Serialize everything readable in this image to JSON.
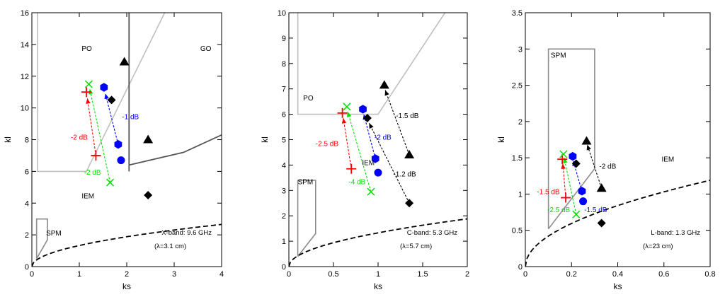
{
  "colors": {
    "red": "#ff0000",
    "green": "#00e000",
    "blue": "#0000ff",
    "black": "#000000",
    "boundary_light": "#bfbfbf",
    "boundary_gray": "#8c8c8c",
    "boundary_dark": "#555555"
  },
  "chart_data": [
    {
      "type": "scatter",
      "band_label": "X-band: 9.6 GHz",
      "wavelength_label": "(λ=3.1 cm)",
      "xlabel": "ks",
      "ylabel": "kl",
      "xlim": [
        0,
        4
      ],
      "ylim": [
        0,
        16
      ],
      "xticks": [
        0,
        1,
        2,
        3,
        4
      ],
      "xtick_labels": [
        "0",
        "1",
        "2",
        "3",
        "4"
      ],
      "yticks": [
        0,
        2,
        4,
        6,
        8,
        10,
        12,
        14,
        16
      ],
      "ytick_labels": [
        "0",
        "2",
        "4",
        "6",
        "8",
        "10",
        "12",
        "14",
        "16"
      ],
      "regions": [
        {
          "label": "PO",
          "x": 1.05,
          "y": 13.6
        },
        {
          "label": "GO",
          "x": 3.55,
          "y": 13.6
        },
        {
          "label": "IEM",
          "x": 1.05,
          "y": 4.3
        },
        {
          "label": "SPM",
          "x": 0.3,
          "y": 1.95
        }
      ],
      "boundaries": [
        {
          "style": "light",
          "points": [
            [
              0.12,
              16
            ],
            [
              0.12,
              6
            ],
            [
              1.15,
              6
            ],
            [
              2.8,
              16
            ]
          ]
        },
        {
          "style": "dark",
          "points": [
            [
              2.05,
              16
            ],
            [
              2.05,
              6
            ]
          ]
        },
        {
          "style": "dark",
          "points": [
            [
              2.05,
              6.4
            ],
            [
              3.2,
              7.2
            ],
            [
              4,
              8.3
            ]
          ]
        },
        {
          "style": "gray",
          "points": [
            [
              0.1,
              0.5
            ],
            [
              0.1,
              3
            ],
            [
              0.33,
              3
            ],
            [
              0.33,
              1.7
            ],
            [
              0.1,
              0.5
            ]
          ]
        }
      ],
      "curve": {
        "type": "sqrt",
        "coef": 1.33
      },
      "points": [
        {
          "series": "red",
          "marker": "plus",
          "x": 1.15,
          "y": 11.0
        },
        {
          "series": "red",
          "marker": "plus",
          "x": 1.35,
          "y": 7.0
        },
        {
          "series": "green",
          "marker": "x",
          "x": 1.2,
          "y": 11.5
        },
        {
          "series": "green",
          "marker": "x",
          "x": 1.65,
          "y": 5.3
        },
        {
          "series": "blue",
          "marker": "hexagon",
          "x": 1.52,
          "y": 11.3
        },
        {
          "series": "blue",
          "marker": "hexagon",
          "x": 1.82,
          "y": 7.7
        },
        {
          "series": "blue",
          "marker": "circle",
          "x": 1.88,
          "y": 6.7
        },
        {
          "series": "black",
          "marker": "triangle",
          "x": 1.95,
          "y": 12.9
        },
        {
          "series": "black",
          "marker": "diamond",
          "x": 1.68,
          "y": 10.5
        },
        {
          "series": "black",
          "marker": "triangle",
          "x": 2.45,
          "y": 8.0
        },
        {
          "series": "black",
          "marker": "diamond",
          "x": 2.45,
          "y": 4.5
        }
      ],
      "arrows": [
        {
          "series": "red",
          "from": [
            1.35,
            7.0
          ],
          "to": [
            1.17,
            10.6
          ]
        },
        {
          "series": "green",
          "from": [
            1.65,
            5.3
          ],
          "to": [
            1.22,
            11.2
          ]
        },
        {
          "series": "blue",
          "from": [
            1.82,
            7.7
          ],
          "to": [
            1.55,
            10.9
          ]
        }
      ],
      "annotations": [
        {
          "text": "-2 dB",
          "series": "red",
          "x": 0.82,
          "y": 8.0
        },
        {
          "text": "-2 dB",
          "series": "green",
          "x": 1.1,
          "y": 5.8
        },
        {
          "text": "-1 dB",
          "series": "blue",
          "x": 1.9,
          "y": 9.3
        }
      ]
    },
    {
      "type": "scatter",
      "band_label": "C-band: 5.3 GHz",
      "wavelength_label": "(λ=5.7 cm)",
      "xlabel": "ks",
      "ylabel": "kl",
      "xlim": [
        0,
        2
      ],
      "ylim": [
        0,
        10
      ],
      "xticks": [
        0,
        0.5,
        1,
        1.5,
        2
      ],
      "xtick_labels": [
        "0",
        "0.5",
        "1",
        "1.5",
        "2"
      ],
      "yticks": [
        0,
        1,
        2,
        3,
        4,
        5,
        6,
        7,
        8,
        9,
        10
      ],
      "ytick_labels": [
        "0",
        "1",
        "2",
        "3",
        "4",
        "5",
        "6",
        "7",
        "8",
        "9",
        "10"
      ],
      "regions": [
        {
          "label": "PO",
          "x": 0.16,
          "y": 6.55
        },
        {
          "label": "IEM",
          "x": 0.82,
          "y": 4.0
        },
        {
          "label": "SPM",
          "x": 0.1,
          "y": 3.25
        }
      ],
      "boundaries": [
        {
          "style": "light",
          "points": [
            [
              0.1,
              10
            ],
            [
              0.1,
              6
            ],
            [
              1.0,
              6
            ],
            [
              1.75,
              10
            ]
          ]
        },
        {
          "style": "gray",
          "points": [
            [
              0.1,
              0.4
            ],
            [
              0.1,
              3.4
            ],
            [
              0.3,
              3.4
            ],
            [
              0.3,
              1.3
            ],
            [
              0.1,
              0.4
            ]
          ]
        }
      ],
      "curve": {
        "type": "sqrt",
        "coef": 1.33
      },
      "points": [
        {
          "series": "red",
          "marker": "plus",
          "x": 0.6,
          "y": 6.05
        },
        {
          "series": "red",
          "marker": "plus",
          "x": 0.7,
          "y": 3.85
        },
        {
          "series": "green",
          "marker": "x",
          "x": 0.65,
          "y": 6.3
        },
        {
          "series": "green",
          "marker": "x",
          "x": 0.92,
          "y": 2.95
        },
        {
          "series": "blue",
          "marker": "hexagon",
          "x": 0.83,
          "y": 6.2
        },
        {
          "series": "blue",
          "marker": "hexagon",
          "x": 0.97,
          "y": 4.25
        },
        {
          "series": "blue",
          "marker": "circle",
          "x": 1.0,
          "y": 3.7
        },
        {
          "series": "black",
          "marker": "diamond",
          "x": 0.88,
          "y": 5.85
        },
        {
          "series": "black",
          "marker": "triangle",
          "x": 1.07,
          "y": 7.15
        },
        {
          "series": "black",
          "marker": "triangle",
          "x": 1.35,
          "y": 4.4
        },
        {
          "series": "black",
          "marker": "diamond",
          "x": 1.35,
          "y": 2.5
        }
      ],
      "arrows": [
        {
          "series": "red",
          "from": [
            0.7,
            3.85
          ],
          "to": [
            0.61,
            5.85
          ]
        },
        {
          "series": "green",
          "from": [
            0.92,
            2.95
          ],
          "to": [
            0.66,
            6.1
          ]
        },
        {
          "series": "blue",
          "from": [
            0.97,
            4.25
          ],
          "to": [
            0.84,
            6.0
          ]
        },
        {
          "series": "black",
          "from": [
            1.35,
            4.4
          ],
          "to": [
            1.08,
            6.95
          ]
        },
        {
          "series": "black",
          "from": [
            1.35,
            2.5
          ],
          "to": [
            0.9,
            5.65
          ]
        }
      ],
      "annotations": [
        {
          "text": "-2.5 dB",
          "series": "red",
          "x": 0.3,
          "y": 4.75
        },
        {
          "text": "-4 dB",
          "series": "green",
          "x": 0.67,
          "y": 3.25
        },
        {
          "text": "-2 dB",
          "series": "blue",
          "x": 0.96,
          "y": 5.0
        },
        {
          "text": "-1.5 dB",
          "series": "black",
          "x": 1.2,
          "y": 5.85
        },
        {
          "text": "-1.2 dB",
          "series": "black",
          "x": 1.17,
          "y": 3.55
        }
      ]
    },
    {
      "type": "scatter",
      "band_label": "L-band: 1.3 GHz",
      "wavelength_label": "(λ=23 cm)",
      "xlabel": "ks",
      "ylabel": "kl",
      "xlim": [
        0,
        0.8
      ],
      "ylim": [
        0,
        3.5
      ],
      "xticks": [
        0,
        0.2,
        0.4,
        0.6,
        0.8
      ],
      "xtick_labels": [
        "0",
        "0.2",
        "0.4",
        "0.6",
        "0.8"
      ],
      "yticks": [
        0,
        0.5,
        1,
        1.5,
        2,
        2.5,
        3,
        3.5
      ],
      "ytick_labels": [
        "0",
        "0.5",
        "1",
        "1.5",
        "2",
        "2.5",
        "3",
        "3.5"
      ],
      "regions": [
        {
          "label": "SPM",
          "x": 0.11,
          "y": 2.88
        },
        {
          "label": "IEM",
          "x": 0.59,
          "y": 1.45
        }
      ],
      "boundaries": [
        {
          "style": "gray",
          "points": [
            [
              0.1,
              0.52
            ],
            [
              0.1,
              3.0
            ],
            [
              0.3,
              3.0
            ],
            [
              0.3,
              1.35
            ],
            [
              0.1,
              0.52
            ]
          ]
        }
      ],
      "curve": {
        "type": "sqrt",
        "coef": 1.33
      },
      "points": [
        {
          "series": "red",
          "marker": "plus",
          "x": 0.16,
          "y": 1.48
        },
        {
          "series": "red",
          "marker": "plus",
          "x": 0.175,
          "y": 0.95
        },
        {
          "series": "green",
          "marker": "x",
          "x": 0.165,
          "y": 1.55
        },
        {
          "series": "green",
          "marker": "x",
          "x": 0.22,
          "y": 0.72
        },
        {
          "series": "blue",
          "marker": "hexagon",
          "x": 0.205,
          "y": 1.52
        },
        {
          "series": "blue",
          "marker": "hexagon",
          "x": 0.245,
          "y": 1.04
        },
        {
          "series": "blue",
          "marker": "circle",
          "x": 0.25,
          "y": 0.9
        },
        {
          "series": "black",
          "marker": "diamond",
          "x": 0.22,
          "y": 1.42
        },
        {
          "series": "black",
          "marker": "triangle",
          "x": 0.265,
          "y": 1.73
        },
        {
          "series": "black",
          "marker": "triangle",
          "x": 0.33,
          "y": 1.08
        },
        {
          "series": "black",
          "marker": "diamond",
          "x": 0.33,
          "y": 0.6
        }
      ],
      "arrows": [
        {
          "series": "red",
          "from": [
            0.175,
            0.95
          ],
          "to": [
            0.162,
            1.42
          ]
        },
        {
          "series": "green",
          "from": [
            0.22,
            0.72
          ],
          "to": [
            0.168,
            1.5
          ]
        },
        {
          "series": "blue",
          "from": [
            0.245,
            1.04
          ],
          "to": [
            0.207,
            1.46
          ]
        },
        {
          "series": "black",
          "from": [
            0.33,
            1.08
          ],
          "to": [
            0.268,
            1.68
          ]
        }
      ],
      "annotations": [
        {
          "text": "-1.5 dB",
          "series": "red",
          "x": 0.05,
          "y": 1.0
        },
        {
          "text": "-2.5 dB",
          "series": "green",
          "x": 0.095,
          "y": 0.75
        },
        {
          "text": "-1.5 dB",
          "series": "blue",
          "x": 0.255,
          "y": 0.75
        },
        {
          "text": "-2 dB",
          "series": "black",
          "x": 0.32,
          "y": 1.35
        }
      ]
    }
  ]
}
